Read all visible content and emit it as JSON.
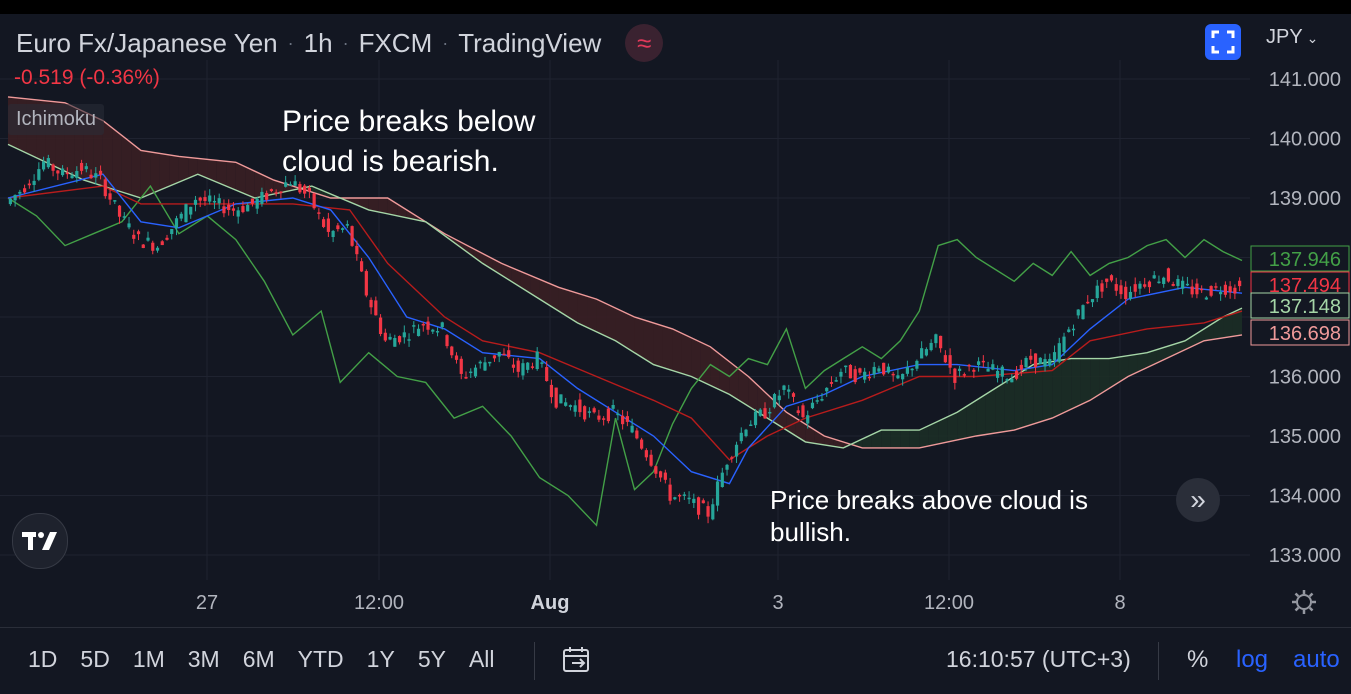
{
  "header": {
    "symbol": "Euro Fx/Japanese Yen",
    "interval": "1h",
    "exchange": "FXCM",
    "source": "TradingView",
    "currency": "JPY",
    "change": "-0.519 (-0.36%)",
    "indicator": "Ichimoku"
  },
  "annotations": {
    "bearish": "Price breaks below cloud is bearish.",
    "bullish": "Price breaks above cloud is bullish."
  },
  "bottom": {
    "ranges": [
      "1D",
      "5D",
      "1M",
      "3M",
      "6M",
      "YTD",
      "1Y",
      "5Y",
      "All"
    ],
    "time": "16:10:57 (UTC+3)",
    "percent": "%",
    "log": "log",
    "auto": "auto"
  },
  "colors": {
    "background": "#131722",
    "up": "#26a69a",
    "down": "#f23645",
    "conversion": "#2962ff",
    "base": "#b71c1c",
    "lagging": "#43a047",
    "spanA": "#a5d6a7",
    "spanB": "#ef9a9a",
    "bearCloud": "#3a1f24",
    "bullCloud": "#1c2d26"
  },
  "chart_data": {
    "type": "candlestick",
    "title": "Euro Fx/Japanese Yen · 1h · FXCM",
    "y_axis": {
      "ticks": [
        133,
        134,
        135,
        136,
        137,
        138,
        139,
        140,
        141
      ],
      "tick_labels": [
        "133.000",
        "134.000",
        "135.000",
        "136.000",
        "",
        "",
        "139.000",
        "140.000",
        "141.000"
      ],
      "ylim": [
        132.6,
        141.4
      ]
    },
    "x_axis": {
      "tick_labels": [
        "27",
        "12:00",
        "Aug",
        "3",
        "12:00",
        "8"
      ],
      "tick_index": [
        0,
        1,
        2,
        3,
        4,
        5
      ]
    },
    "price_labels": [
      {
        "value": 137.946,
        "text": "137.946",
        "series": "lagging"
      },
      {
        "value": 137.494,
        "text": "137.494",
        "series": "last"
      },
      {
        "value": 137.148,
        "text": "137.148",
        "series": "spanA"
      },
      {
        "value": 136.698,
        "text": "136.698",
        "series": "spanB"
      }
    ],
    "price_path": [
      {
        "t": 0,
        "v": 138.9
      },
      {
        "t": 2,
        "v": 139.2
      },
      {
        "t": 4,
        "v": 139.6
      },
      {
        "t": 6,
        "v": 139.4
      },
      {
        "t": 8,
        "v": 139.5
      },
      {
        "t": 10,
        "v": 139.3
      },
      {
        "t": 12,
        "v": 138.7
      },
      {
        "t": 14,
        "v": 138.3
      },
      {
        "t": 16,
        "v": 138.2
      },
      {
        "t": 18,
        "v": 138.6
      },
      {
        "t": 20,
        "v": 139.0
      },
      {
        "t": 22,
        "v": 138.9
      },
      {
        "t": 24,
        "v": 138.8
      },
      {
        "t": 26,
        "v": 138.9
      },
      {
        "t": 28,
        "v": 139.1
      },
      {
        "t": 30,
        "v": 139.3
      },
      {
        "t": 32,
        "v": 139.0
      },
      {
        "t": 34,
        "v": 138.4
      },
      {
        "t": 36,
        "v": 138.5
      },
      {
        "t": 38,
        "v": 137.4
      },
      {
        "t": 40,
        "v": 136.6
      },
      {
        "t": 42,
        "v": 136.7
      },
      {
        "t": 44,
        "v": 136.9
      },
      {
        "t": 46,
        "v": 136.8
      },
      {
        "t": 48,
        "v": 136.0
      },
      {
        "t": 50,
        "v": 136.2
      },
      {
        "t": 52,
        "v": 136.4
      },
      {
        "t": 54,
        "v": 136.1
      },
      {
        "t": 56,
        "v": 136.3
      },
      {
        "t": 58,
        "v": 135.6
      },
      {
        "t": 60,
        "v": 135.5
      },
      {
        "t": 62,
        "v": 135.3
      },
      {
        "t": 64,
        "v": 135.4
      },
      {
        "t": 66,
        "v": 135.1
      },
      {
        "t": 68,
        "v": 134.6
      },
      {
        "t": 70,
        "v": 134.0
      },
      {
        "t": 72,
        "v": 133.9
      },
      {
        "t": 74,
        "v": 133.7
      },
      {
        "t": 76,
        "v": 134.6
      },
      {
        "t": 78,
        "v": 135.2
      },
      {
        "t": 80,
        "v": 135.4
      },
      {
        "t": 82,
        "v": 135.8
      },
      {
        "t": 84,
        "v": 135.3
      },
      {
        "t": 86,
        "v": 135.7
      },
      {
        "t": 88,
        "v": 136.1
      },
      {
        "t": 90,
        "v": 136.0
      },
      {
        "t": 92,
        "v": 136.2
      },
      {
        "t": 94,
        "v": 135.9
      },
      {
        "t": 96,
        "v": 136.3
      },
      {
        "t": 98,
        "v": 136.6
      },
      {
        "t": 100,
        "v": 136.0
      },
      {
        "t": 102,
        "v": 136.2
      },
      {
        "t": 104,
        "v": 136.1
      },
      {
        "t": 106,
        "v": 136.0
      },
      {
        "t": 108,
        "v": 136.3
      },
      {
        "t": 110,
        "v": 136.2
      },
      {
        "t": 112,
        "v": 136.8
      },
      {
        "t": 114,
        "v": 137.3
      },
      {
        "t": 116,
        "v": 137.6
      },
      {
        "t": 118,
        "v": 137.4
      },
      {
        "t": 120,
        "v": 137.6
      },
      {
        "t": 122,
        "v": 137.7
      },
      {
        "t": 124,
        "v": 137.5
      },
      {
        "t": 126,
        "v": 137.4
      },
      {
        "t": 128,
        "v": 137.5
      },
      {
        "t": 130,
        "v": 137.49
      }
    ],
    "series": [
      {
        "key": "conversion",
        "points": [
          [
            0,
            139.0
          ],
          [
            10,
            139.4
          ],
          [
            14,
            138.6
          ],
          [
            18,
            138.5
          ],
          [
            24,
            138.9
          ],
          [
            30,
            139.0
          ],
          [
            34,
            138.8
          ],
          [
            38,
            138.0
          ],
          [
            42,
            137.0
          ],
          [
            46,
            136.8
          ],
          [
            50,
            136.4
          ],
          [
            56,
            136.3
          ],
          [
            60,
            135.8
          ],
          [
            64,
            135.4
          ],
          [
            68,
            135.0
          ],
          [
            72,
            134.4
          ],
          [
            76,
            134.2
          ],
          [
            78,
            134.8
          ],
          [
            82,
            135.5
          ],
          [
            86,
            135.7
          ],
          [
            90,
            136.0
          ],
          [
            96,
            136.2
          ],
          [
            100,
            136.2
          ],
          [
            106,
            136.1
          ],
          [
            110,
            136.2
          ],
          [
            114,
            136.8
          ],
          [
            118,
            137.3
          ],
          [
            124,
            137.5
          ],
          [
            130,
            137.4
          ]
        ]
      },
      {
        "key": "base",
        "points": [
          [
            0,
            139.0
          ],
          [
            10,
            139.2
          ],
          [
            14,
            138.9
          ],
          [
            24,
            138.9
          ],
          [
            30,
            138.9
          ],
          [
            36,
            138.8
          ],
          [
            40,
            137.9
          ],
          [
            46,
            137.0
          ],
          [
            50,
            136.6
          ],
          [
            56,
            136.4
          ],
          [
            62,
            136.0
          ],
          [
            68,
            135.6
          ],
          [
            72,
            135.3
          ],
          [
            76,
            134.6
          ],
          [
            80,
            135.0
          ],
          [
            84,
            135.3
          ],
          [
            90,
            135.6
          ],
          [
            96,
            136.0
          ],
          [
            102,
            136.0
          ],
          [
            110,
            136.1
          ],
          [
            114,
            136.6
          ],
          [
            120,
            136.8
          ],
          [
            126,
            136.9
          ],
          [
            130,
            137.1
          ]
        ]
      },
      {
        "key": "spanA",
        "points": [
          [
            0,
            139.9
          ],
          [
            8,
            139.3
          ],
          [
            14,
            139.0
          ],
          [
            20,
            139.4
          ],
          [
            26,
            139.0
          ],
          [
            32,
            139.2
          ],
          [
            38,
            138.8
          ],
          [
            44,
            138.6
          ],
          [
            50,
            137.9
          ],
          [
            56,
            137.3
          ],
          [
            60,
            136.9
          ],
          [
            64,
            136.6
          ],
          [
            68,
            136.2
          ],
          [
            72,
            136.0
          ],
          [
            76,
            135.7
          ],
          [
            80,
            135.3
          ],
          [
            84,
            134.9
          ],
          [
            88,
            134.8
          ],
          [
            92,
            135.1
          ],
          [
            96,
            135.1
          ],
          [
            100,
            135.4
          ],
          [
            104,
            135.8
          ],
          [
            108,
            136.2
          ],
          [
            112,
            136.3
          ],
          [
            116,
            136.3
          ],
          [
            120,
            136.4
          ],
          [
            124,
            136.6
          ],
          [
            128,
            137.0
          ],
          [
            130,
            137.15
          ]
        ]
      },
      {
        "key": "spanB",
        "points": [
          [
            0,
            140.7
          ],
          [
            6,
            140.6
          ],
          [
            10,
            140.3
          ],
          [
            14,
            139.8
          ],
          [
            18,
            139.7
          ],
          [
            24,
            139.6
          ],
          [
            28,
            139.3
          ],
          [
            34,
            139.0
          ],
          [
            40,
            139.0
          ],
          [
            46,
            138.4
          ],
          [
            52,
            137.9
          ],
          [
            58,
            137.5
          ],
          [
            62,
            137.3
          ],
          [
            66,
            137.0
          ],
          [
            70,
            136.8
          ],
          [
            74,
            136.5
          ],
          [
            78,
            136.0
          ],
          [
            82,
            135.4
          ],
          [
            86,
            135.0
          ],
          [
            90,
            134.8
          ],
          [
            96,
            134.8
          ],
          [
            102,
            135.0
          ],
          [
            106,
            135.1
          ],
          [
            110,
            135.3
          ],
          [
            114,
            135.6
          ],
          [
            118,
            136.0
          ],
          [
            122,
            136.3
          ],
          [
            126,
            136.6
          ],
          [
            130,
            136.7
          ]
        ]
      },
      {
        "key": "lagging",
        "points": [
          [
            0,
            139.0
          ],
          [
            3,
            138.7
          ],
          [
            6,
            138.2
          ],
          [
            9,
            138.4
          ],
          [
            12,
            138.6
          ],
          [
            15,
            139.2
          ],
          [
            18,
            138.4
          ],
          [
            21,
            138.7
          ],
          [
            24,
            138.3
          ],
          [
            27,
            137.6
          ],
          [
            30,
            136.7
          ],
          [
            33,
            137.1
          ],
          [
            35,
            135.9
          ],
          [
            38,
            136.4
          ],
          [
            41,
            136.0
          ],
          [
            44,
            135.9
          ],
          [
            47,
            135.3
          ],
          [
            50,
            135.5
          ],
          [
            53,
            135.0
          ],
          [
            56,
            134.3
          ],
          [
            59,
            134.0
          ],
          [
            62,
            133.5
          ],
          [
            64,
            135.3
          ],
          [
            66,
            134.1
          ],
          [
            68,
            134.4
          ],
          [
            70,
            135.2
          ],
          [
            72,
            135.8
          ],
          [
            74,
            136.2
          ],
          [
            76,
            136.0
          ],
          [
            78,
            136.3
          ],
          [
            80,
            136.2
          ],
          [
            82,
            136.8
          ],
          [
            84,
            135.8
          ],
          [
            86,
            136.1
          ],
          [
            88,
            136.3
          ],
          [
            90,
            136.5
          ],
          [
            92,
            136.3
          ],
          [
            94,
            136.6
          ],
          [
            96,
            137.1
          ],
          [
            98,
            138.2
          ],
          [
            100,
            138.3
          ],
          [
            102,
            138.0
          ],
          [
            104,
            137.8
          ],
          [
            106,
            137.6
          ],
          [
            108,
            137.9
          ],
          [
            110,
            137.7
          ],
          [
            112,
            138.1
          ],
          [
            114,
            137.7
          ],
          [
            116,
            137.9
          ],
          [
            118,
            138.0
          ],
          [
            120,
            138.2
          ],
          [
            122,
            138.3
          ],
          [
            124,
            138.0
          ],
          [
            126,
            138.3
          ],
          [
            128,
            138.1
          ],
          [
            130,
            137.95
          ]
        ]
      }
    ]
  }
}
